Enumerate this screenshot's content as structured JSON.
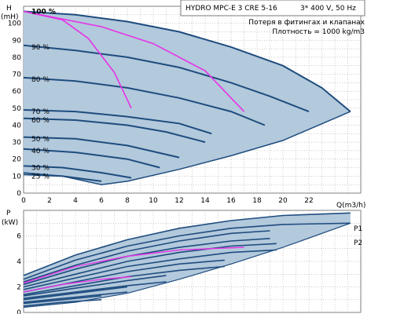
{
  "header": {
    "pump_title": "HYDRO MPC-E 3 CRE 5-16",
    "power_supply": "3* 400 V, 50 Hz",
    "loss_note": "Потеря в фитингах и клапанах",
    "density_note": "Плотность = 1000 kg/m3"
  },
  "colors": {
    "envelope_fill": "#b3c9dc",
    "curve": "#1e4c7e",
    "system_curve": "#e633e6",
    "grid": "#999999"
  },
  "chart_data": [
    {
      "type": "line",
      "name": "head-chart",
      "ylabel": "H",
      "yunit": "(mH)",
      "xlabel": "Q(m3/h)",
      "xlim": [
        0,
        26
      ],
      "ylim": [
        0,
        110
      ],
      "x_ticks": [
        0,
        2,
        4,
        6,
        8,
        10,
        12,
        14,
        16,
        18,
        20,
        22
      ],
      "y_ticks": [
        0,
        10,
        20,
        30,
        40,
        50,
        60,
        70,
        80,
        90,
        100
      ],
      "grid": true,
      "speed_labels": [
        "100 %",
        "90 %",
        "80 %",
        "70 %",
        "60 %",
        "50 %",
        "40 %",
        "30 %",
        "25 %"
      ],
      "speed_label_heights": [
        107,
        86,
        67,
        48,
        43,
        32,
        25,
        15,
        10
      ],
      "envelope_top": [
        [
          0,
          107
        ],
        [
          4,
          105
        ],
        [
          8,
          101
        ],
        [
          12,
          95
        ],
        [
          16,
          86
        ],
        [
          20,
          75
        ],
        [
          23,
          62
        ],
        [
          25.2,
          48
        ]
      ],
      "envelope_bottom": [
        [
          0,
          12
        ],
        [
          3,
          10
        ],
        [
          6,
          5
        ],
        [
          8,
          7
        ],
        [
          12,
          14
        ],
        [
          16,
          22
        ],
        [
          20,
          31
        ],
        [
          25.2,
          48
        ]
      ],
      "speed_curves": [
        {
          "label": "100 %",
          "points": [
            [
              0,
              107
            ],
            [
              4,
              105
            ],
            [
              8,
              101
            ],
            [
              12,
              95
            ],
            [
              16,
              86
            ],
            [
              20,
              75
            ],
            [
              23,
              62
            ],
            [
              25.2,
              48
            ]
          ]
        },
        {
          "label": "90 %",
          "points": [
            [
              0,
              87
            ],
            [
              4,
              84
            ],
            [
              8,
              80
            ],
            [
              12,
              74
            ],
            [
              16,
              65
            ],
            [
              19,
              57
            ],
            [
              22,
              48
            ]
          ]
        },
        {
          "label": "80 %",
          "points": [
            [
              0,
              68
            ],
            [
              4,
              66
            ],
            [
              8,
              62
            ],
            [
              12,
              56
            ],
            [
              16,
              48
            ],
            [
              18.6,
              40
            ]
          ]
        },
        {
          "label": "70 %",
          "points": [
            [
              0,
              49
            ],
            [
              4,
              48
            ],
            [
              8,
              45
            ],
            [
              12,
              41
            ],
            [
              14.5,
              35
            ]
          ]
        },
        {
          "label": "60 %",
          "points": [
            [
              0,
              44
            ],
            [
              4,
              43
            ],
            [
              8,
              40
            ],
            [
              11,
              36
            ],
            [
              14,
              30
            ]
          ]
        },
        {
          "label": "50 %",
          "points": [
            [
              0,
              33
            ],
            [
              4,
              32
            ],
            [
              8,
              28
            ],
            [
              12,
              21
            ]
          ]
        },
        {
          "label": "40 %",
          "points": [
            [
              0,
              26
            ],
            [
              4,
              24
            ],
            [
              8,
              20
            ],
            [
              10.5,
              15
            ]
          ]
        },
        {
          "label": "30 %",
          "points": [
            [
              0,
              16
            ],
            [
              3,
              15
            ],
            [
              6,
              12
            ],
            [
              8.3,
              9
            ]
          ]
        },
        {
          "label": "25 %",
          "points": [
            [
              0,
              11
            ],
            [
              3,
              10
            ],
            [
              6,
              7
            ]
          ]
        }
      ],
      "system_curves": [
        {
          "points": [
            [
              0,
              107
            ],
            [
              3,
              102
            ],
            [
              5,
              91
            ],
            [
              7,
              71
            ],
            [
              8.3,
              50
            ]
          ]
        },
        {
          "points": [
            [
              0,
              107
            ],
            [
              6,
              98
            ],
            [
              10,
              88
            ],
            [
              14,
              72
            ],
            [
              17,
              48
            ]
          ]
        }
      ]
    },
    {
      "type": "line",
      "name": "power-chart",
      "ylabel": "P",
      "yunit": "(kW)",
      "xlim": [
        0,
        26
      ],
      "ylim": [
        0,
        8
      ],
      "y_ticks": [
        0,
        2,
        4,
        6
      ],
      "grid": true,
      "legend": [
        "P1",
        "P2"
      ],
      "envelope_top": [
        [
          0,
          2.9
        ],
        [
          4,
          4.5
        ],
        [
          8,
          5.7
        ],
        [
          12,
          6.6
        ],
        [
          16,
          7.2
        ],
        [
          20,
          7.6
        ],
        [
          25.2,
          7.8
        ]
      ],
      "envelope_bottom": [
        [
          0,
          0.4
        ],
        [
          4,
          0.8
        ],
        [
          8,
          1.5
        ],
        [
          12,
          2.6
        ],
        [
          16,
          3.8
        ],
        [
          20,
          5.1
        ],
        [
          25.2,
          7.0
        ]
      ],
      "p1_curves": [
        [
          [
            0,
            2.9
          ],
          [
            4,
            4.5
          ],
          [
            8,
            5.7
          ],
          [
            12,
            6.6
          ],
          [
            16,
            7.2
          ],
          [
            20,
            7.6
          ],
          [
            25.2,
            7.8
          ]
        ],
        [
          [
            0,
            2.4
          ],
          [
            4,
            3.7
          ],
          [
            8,
            4.8
          ],
          [
            12,
            5.6
          ],
          [
            16,
            6.2
          ],
          [
            19,
            6.4
          ]
        ],
        [
          [
            0,
            2.0
          ],
          [
            4,
            3.0
          ],
          [
            8,
            4.0
          ],
          [
            12,
            4.7
          ],
          [
            16,
            5.2
          ],
          [
            19.5,
            5.4
          ]
        ],
        [
          [
            0,
            1.6
          ],
          [
            4,
            2.4
          ],
          [
            8,
            3.2
          ],
          [
            12,
            3.8
          ],
          [
            15.5,
            4.1
          ]
        ],
        [
          [
            0,
            1.3
          ],
          [
            4,
            1.9
          ],
          [
            8,
            2.5
          ],
          [
            11,
            2.9
          ]
        ],
        [
          [
            0,
            1.0
          ],
          [
            4,
            1.5
          ],
          [
            8,
            2.0
          ]
        ],
        [
          [
            0,
            0.7
          ],
          [
            3,
            1.0
          ],
          [
            6,
            1.3
          ]
        ]
      ],
      "p2_curves": [
        [
          [
            0,
            2.6
          ],
          [
            4,
            4.1
          ],
          [
            8,
            5.2
          ],
          [
            12,
            6.0
          ],
          [
            16,
            6.6
          ],
          [
            20,
            6.9
          ],
          [
            25.2,
            7.0
          ]
        ],
        [
          [
            0,
            2.2
          ],
          [
            4,
            3.4
          ],
          [
            8,
            4.4
          ],
          [
            12,
            5.1
          ],
          [
            16,
            5.6
          ],
          [
            19,
            5.8
          ]
        ],
        [
          [
            0,
            1.8
          ],
          [
            4,
            2.7
          ],
          [
            8,
            3.6
          ],
          [
            12,
            4.2
          ],
          [
            16,
            4.7
          ],
          [
            19.5,
            4.9
          ]
        ],
        [
          [
            0,
            1.4
          ],
          [
            4,
            2.1
          ],
          [
            8,
            2.8
          ],
          [
            12,
            3.3
          ],
          [
            15.5,
            3.6
          ]
        ],
        [
          [
            0,
            1.1
          ],
          [
            4,
            1.6
          ],
          [
            8,
            2.1
          ],
          [
            11,
            2.4
          ]
        ],
        [
          [
            0,
            0.8
          ],
          [
            4,
            1.2
          ],
          [
            8,
            1.6
          ]
        ],
        [
          [
            0,
            0.5
          ],
          [
            3,
            0.8
          ],
          [
            6,
            1.0
          ]
        ]
      ],
      "system_curves": [
        {
          "points": [
            [
              0,
              2.3
            ],
            [
              4,
              3.6
            ],
            [
              8,
              4.4
            ],
            [
              12,
              4.9
            ],
            [
              17,
              5.1
            ]
          ]
        },
        {
          "points": [
            [
              0,
              1.6
            ],
            [
              3,
              2.2
            ],
            [
              6,
              2.6
            ],
            [
              8.3,
              2.8
            ]
          ]
        }
      ]
    }
  ]
}
